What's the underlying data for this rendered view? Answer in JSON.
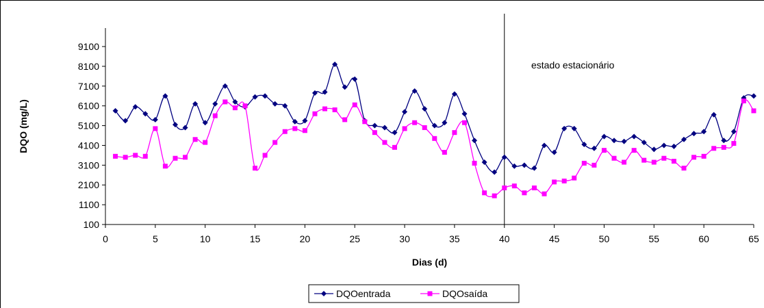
{
  "chart_data": {
    "type": "line",
    "xlabel": "Dias (d)",
    "ylabel": "DQO (mg/L)",
    "xlim": [
      0,
      65
    ],
    "ylim": [
      100,
      9100
    ],
    "xticks": [
      0,
      5,
      10,
      15,
      20,
      25,
      30,
      35,
      40,
      45,
      50,
      55,
      60,
      65
    ],
    "yticks": [
      100,
      1100,
      2100,
      3100,
      4100,
      5100,
      6100,
      7100,
      8100,
      9100
    ],
    "grid": false,
    "legend_position": "bottom",
    "annotation": {
      "text": "estado estacionário",
      "vertical_line_x": 40
    },
    "x": [
      1,
      2,
      3,
      4,
      5,
      6,
      7,
      8,
      9,
      10,
      11,
      12,
      13,
      14,
      15,
      16,
      17,
      18,
      19,
      20,
      21,
      22,
      23,
      24,
      25,
      26,
      27,
      28,
      29,
      30,
      31,
      32,
      33,
      34,
      35,
      36,
      37,
      38,
      39,
      40,
      41,
      42,
      43,
      44,
      45,
      46,
      47,
      48,
      49,
      50,
      51,
      52,
      53,
      54,
      55,
      56,
      57,
      58,
      59,
      60,
      61,
      62,
      63,
      64,
      65
    ],
    "series": [
      {
        "name": "DQOentrada",
        "color": "#000080",
        "marker": "diamond",
        "values": [
          5850,
          5350,
          6050,
          5700,
          5400,
          6600,
          5150,
          5000,
          6200,
          5250,
          6200,
          7100,
          6300,
          6050,
          6550,
          6600,
          6200,
          6100,
          5300,
          5350,
          6750,
          6800,
          8200,
          7050,
          7450,
          5350,
          5100,
          5000,
          4750,
          5800,
          6850,
          5950,
          5100,
          5250,
          6700,
          5700,
          4350,
          3250,
          2750,
          3500,
          3050,
          3100,
          2950,
          4100,
          3750,
          4950,
          4950,
          4150,
          3950,
          4550,
          4350,
          4300,
          4550,
          4250,
          3900,
          4100,
          4050,
          4400,
          4700,
          4800,
          5650,
          4350,
          4800,
          6500,
          6600
        ]
      },
      {
        "name": "DQOsaída",
        "color": "#FF00FF",
        "marker": "square",
        "values": [
          3550,
          3500,
          3600,
          3550,
          4950,
          3050,
          3450,
          3500,
          4400,
          4250,
          5600,
          6300,
          6000,
          6100,
          2950,
          3600,
          4250,
          4800,
          4950,
          4850,
          5700,
          5950,
          5900,
          5400,
          6150,
          5300,
          4750,
          4250,
          4000,
          4950,
          5250,
          5000,
          4450,
          3750,
          4750,
          5250,
          3200,
          1700,
          1550,
          1950,
          2050,
          1700,
          1950,
          1650,
          2250,
          2300,
          2450,
          3200,
          3100,
          3850,
          3450,
          3250,
          3850,
          3350,
          3250,
          3450,
          3300,
          2950,
          3500,
          3550,
          3950,
          4000,
          4200,
          6350,
          5850
        ]
      }
    ]
  }
}
